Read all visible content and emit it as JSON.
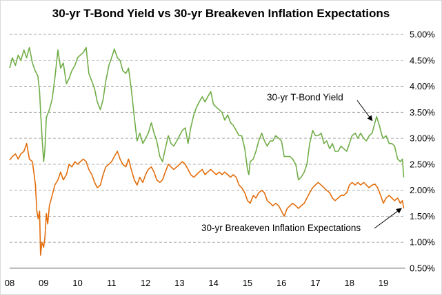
{
  "chart_data": {
    "type": "line",
    "title": "30-yr T-Bond Yield vs 30-yr Breakeven Inflation Expectations",
    "xlabel": "",
    "ylabel": "",
    "x_ticks": [
      "08",
      "09",
      "10",
      "11",
      "12",
      "13",
      "14",
      "15",
      "16",
      "17",
      "18",
      "19"
    ],
    "y_ticks": [
      "0.50%",
      "1.00%",
      "1.50%",
      "2.00%",
      "2.50%",
      "3.00%",
      "3.50%",
      "4.00%",
      "4.50%",
      "5.00%"
    ],
    "xlim": [
      2008.0,
      2019.65
    ],
    "ylim": [
      0.5,
      5.0
    ],
    "y_position": "right",
    "grid": "horizontal-dashed",
    "colors": {
      "yield": "#70ad47",
      "breakeven": "#e36c0a"
    },
    "series": [
      {
        "name": "30-yr T-Bond Yield",
        "key": "yield",
        "points": [
          [
            2008.0,
            4.35
          ],
          [
            2008.08,
            4.55
          ],
          [
            2008.17,
            4.4
          ],
          [
            2008.25,
            4.6
          ],
          [
            2008.33,
            4.5
          ],
          [
            2008.42,
            4.7
          ],
          [
            2008.5,
            4.55
          ],
          [
            2008.58,
            4.75
          ],
          [
            2008.67,
            4.45
          ],
          [
            2008.75,
            4.3
          ],
          [
            2008.83,
            4.2
          ],
          [
            2008.88,
            3.9
          ],
          [
            2008.92,
            3.4
          ],
          [
            2008.96,
            2.95
          ],
          [
            2009.0,
            2.55
          ],
          [
            2009.04,
            2.8
          ],
          [
            2009.08,
            3.4
          ],
          [
            2009.17,
            3.55
          ],
          [
            2009.25,
            3.75
          ],
          [
            2009.33,
            4.15
          ],
          [
            2009.42,
            4.7
          ],
          [
            2009.5,
            4.35
          ],
          [
            2009.58,
            4.45
          ],
          [
            2009.67,
            4.05
          ],
          [
            2009.75,
            4.15
          ],
          [
            2009.83,
            4.3
          ],
          [
            2009.92,
            4.4
          ],
          [
            2010.0,
            4.55
          ],
          [
            2010.08,
            4.6
          ],
          [
            2010.17,
            4.65
          ],
          [
            2010.25,
            4.75
          ],
          [
            2010.33,
            4.25
          ],
          [
            2010.42,
            4.1
          ],
          [
            2010.5,
            3.95
          ],
          [
            2010.58,
            3.7
          ],
          [
            2010.67,
            3.55
          ],
          [
            2010.75,
            3.75
          ],
          [
            2010.83,
            4.1
          ],
          [
            2010.92,
            4.4
          ],
          [
            2011.0,
            4.55
          ],
          [
            2011.08,
            4.72
          ],
          [
            2011.17,
            4.55
          ],
          [
            2011.25,
            4.5
          ],
          [
            2011.33,
            4.3
          ],
          [
            2011.42,
            4.25
          ],
          [
            2011.5,
            4.35
          ],
          [
            2011.58,
            3.95
          ],
          [
            2011.67,
            3.4
          ],
          [
            2011.75,
            2.95
          ],
          [
            2011.83,
            3.1
          ],
          [
            2011.92,
            2.9
          ],
          [
            2012.0,
            3.0
          ],
          [
            2012.08,
            3.1
          ],
          [
            2012.17,
            3.3
          ],
          [
            2012.25,
            3.1
          ],
          [
            2012.33,
            2.95
          ],
          [
            2012.42,
            2.65
          ],
          [
            2012.5,
            2.55
          ],
          [
            2012.58,
            2.8
          ],
          [
            2012.67,
            3.05
          ],
          [
            2012.75,
            2.9
          ],
          [
            2012.83,
            2.85
          ],
          [
            2012.92,
            2.95
          ],
          [
            2013.0,
            3.05
          ],
          [
            2013.08,
            3.15
          ],
          [
            2013.17,
            3.2
          ],
          [
            2013.25,
            2.9
          ],
          [
            2013.33,
            3.2
          ],
          [
            2013.42,
            3.45
          ],
          [
            2013.5,
            3.6
          ],
          [
            2013.58,
            3.7
          ],
          [
            2013.67,
            3.8
          ],
          [
            2013.75,
            3.7
          ],
          [
            2013.83,
            3.8
          ],
          [
            2013.92,
            3.9
          ],
          [
            2014.0,
            3.65
          ],
          [
            2014.08,
            3.6
          ],
          [
            2014.17,
            3.55
          ],
          [
            2014.25,
            3.5
          ],
          [
            2014.33,
            3.35
          ],
          [
            2014.42,
            3.45
          ],
          [
            2014.5,
            3.3
          ],
          [
            2014.58,
            3.25
          ],
          [
            2014.67,
            3.15
          ],
          [
            2014.75,
            3.05
          ],
          [
            2014.83,
            3.05
          ],
          [
            2014.92,
            2.8
          ],
          [
            2015.0,
            2.4
          ],
          [
            2015.04,
            2.3
          ],
          [
            2015.08,
            2.55
          ],
          [
            2015.17,
            2.6
          ],
          [
            2015.25,
            2.75
          ],
          [
            2015.33,
            2.95
          ],
          [
            2015.42,
            3.1
          ],
          [
            2015.5,
            2.95
          ],
          [
            2015.58,
            2.85
          ],
          [
            2015.67,
            2.95
          ],
          [
            2015.75,
            2.95
          ],
          [
            2015.83,
            3.05
          ],
          [
            2015.92,
            3.0
          ],
          [
            2016.0,
            2.95
          ],
          [
            2016.08,
            2.65
          ],
          [
            2016.17,
            2.65
          ],
          [
            2016.25,
            2.65
          ],
          [
            2016.33,
            2.6
          ],
          [
            2016.42,
            2.5
          ],
          [
            2016.5,
            2.2
          ],
          [
            2016.58,
            2.25
          ],
          [
            2016.67,
            2.35
          ],
          [
            2016.75,
            2.5
          ],
          [
            2016.83,
            2.9
          ],
          [
            2016.92,
            3.15
          ],
          [
            2017.0,
            3.05
          ],
          [
            2017.08,
            3.05
          ],
          [
            2017.17,
            3.1
          ],
          [
            2017.25,
            2.9
          ],
          [
            2017.33,
            2.95
          ],
          [
            2017.42,
            2.8
          ],
          [
            2017.5,
            2.9
          ],
          [
            2017.58,
            2.75
          ],
          [
            2017.67,
            2.75
          ],
          [
            2017.75,
            2.85
          ],
          [
            2017.83,
            2.8
          ],
          [
            2017.92,
            2.75
          ],
          [
            2018.0,
            2.9
          ],
          [
            2018.08,
            3.05
          ],
          [
            2018.17,
            3.1
          ],
          [
            2018.25,
            3.0
          ],
          [
            2018.33,
            3.1
          ],
          [
            2018.42,
            3.0
          ],
          [
            2018.5,
            2.95
          ],
          [
            2018.58,
            3.05
          ],
          [
            2018.67,
            3.1
          ],
          [
            2018.75,
            3.3
          ],
          [
            2018.8,
            3.42
          ],
          [
            2018.88,
            3.25
          ],
          [
            2018.96,
            3.05
          ],
          [
            2019.0,
            3.0
          ],
          [
            2019.08,
            3.05
          ],
          [
            2019.17,
            2.9
          ],
          [
            2019.25,
            2.9
          ],
          [
            2019.33,
            2.85
          ],
          [
            2019.42,
            2.6
          ],
          [
            2019.5,
            2.55
          ],
          [
            2019.56,
            2.6
          ],
          [
            2019.6,
            2.25
          ]
        ]
      },
      {
        "name": "30-yr Breakeven Inflation Expectations",
        "key": "breakeven",
        "points": [
          [
            2008.0,
            2.58
          ],
          [
            2008.08,
            2.65
          ],
          [
            2008.17,
            2.7
          ],
          [
            2008.25,
            2.6
          ],
          [
            2008.33,
            2.7
          ],
          [
            2008.42,
            2.75
          ],
          [
            2008.5,
            2.9
          ],
          [
            2008.58,
            2.6
          ],
          [
            2008.67,
            2.55
          ],
          [
            2008.72,
            2.3
          ],
          [
            2008.76,
            2.1
          ],
          [
            2008.8,
            1.6
          ],
          [
            2008.84,
            1.45
          ],
          [
            2008.88,
            1.6
          ],
          [
            2008.91,
            0.75
          ],
          [
            2008.95,
            1.0
          ],
          [
            2009.0,
            0.9
          ],
          [
            2009.04,
            1.1
          ],
          [
            2009.08,
            1.55
          ],
          [
            2009.12,
            1.35
          ],
          [
            2009.17,
            1.7
          ],
          [
            2009.25,
            1.9
          ],
          [
            2009.33,
            2.1
          ],
          [
            2009.42,
            2.2
          ],
          [
            2009.5,
            2.35
          ],
          [
            2009.58,
            2.2
          ],
          [
            2009.67,
            2.3
          ],
          [
            2009.75,
            2.5
          ],
          [
            2009.83,
            2.45
          ],
          [
            2009.92,
            2.55
          ],
          [
            2010.0,
            2.5
          ],
          [
            2010.08,
            2.55
          ],
          [
            2010.17,
            2.6
          ],
          [
            2010.25,
            2.55
          ],
          [
            2010.33,
            2.4
          ],
          [
            2010.42,
            2.3
          ],
          [
            2010.5,
            2.15
          ],
          [
            2010.58,
            2.05
          ],
          [
            2010.67,
            2.1
          ],
          [
            2010.75,
            2.3
          ],
          [
            2010.83,
            2.45
          ],
          [
            2010.92,
            2.5
          ],
          [
            2011.0,
            2.55
          ],
          [
            2011.08,
            2.65
          ],
          [
            2011.17,
            2.75
          ],
          [
            2011.25,
            2.6
          ],
          [
            2011.33,
            2.5
          ],
          [
            2011.42,
            2.45
          ],
          [
            2011.5,
            2.6
          ],
          [
            2011.58,
            2.4
          ],
          [
            2011.67,
            2.2
          ],
          [
            2011.75,
            2.1
          ],
          [
            2011.83,
            2.25
          ],
          [
            2011.92,
            2.15
          ],
          [
            2012.0,
            2.3
          ],
          [
            2012.08,
            2.4
          ],
          [
            2012.17,
            2.45
          ],
          [
            2012.25,
            2.35
          ],
          [
            2012.33,
            2.2
          ],
          [
            2012.42,
            2.15
          ],
          [
            2012.5,
            2.2
          ],
          [
            2012.58,
            2.35
          ],
          [
            2012.67,
            2.5
          ],
          [
            2012.75,
            2.45
          ],
          [
            2012.83,
            2.4
          ],
          [
            2012.92,
            2.45
          ],
          [
            2013.0,
            2.5
          ],
          [
            2013.08,
            2.55
          ],
          [
            2013.17,
            2.5
          ],
          [
            2013.25,
            2.4
          ],
          [
            2013.33,
            2.3
          ],
          [
            2013.42,
            2.25
          ],
          [
            2013.5,
            2.3
          ],
          [
            2013.58,
            2.35
          ],
          [
            2013.67,
            2.4
          ],
          [
            2013.75,
            2.3
          ],
          [
            2013.83,
            2.35
          ],
          [
            2013.92,
            2.4
          ],
          [
            2014.0,
            2.35
          ],
          [
            2014.08,
            2.3
          ],
          [
            2014.17,
            2.35
          ],
          [
            2014.25,
            2.3
          ],
          [
            2014.33,
            2.35
          ],
          [
            2014.42,
            2.3
          ],
          [
            2014.5,
            2.25
          ],
          [
            2014.58,
            2.3
          ],
          [
            2014.67,
            2.25
          ],
          [
            2014.75,
            2.1
          ],
          [
            2014.83,
            2.05
          ],
          [
            2014.92,
            1.95
          ],
          [
            2015.0,
            1.8
          ],
          [
            2015.08,
            1.75
          ],
          [
            2015.17,
            1.9
          ],
          [
            2015.25,
            1.85
          ],
          [
            2015.33,
            1.95
          ],
          [
            2015.42,
            2.0
          ],
          [
            2015.5,
            1.95
          ],
          [
            2015.58,
            1.8
          ],
          [
            2015.67,
            1.75
          ],
          [
            2015.75,
            1.7
          ],
          [
            2015.83,
            1.75
          ],
          [
            2015.92,
            1.7
          ],
          [
            2016.0,
            1.6
          ],
          [
            2016.08,
            1.5
          ],
          [
            2016.17,
            1.65
          ],
          [
            2016.25,
            1.7
          ],
          [
            2016.33,
            1.75
          ],
          [
            2016.42,
            1.7
          ],
          [
            2016.5,
            1.65
          ],
          [
            2016.58,
            1.7
          ],
          [
            2016.67,
            1.75
          ],
          [
            2016.75,
            1.85
          ],
          [
            2016.83,
            1.95
          ],
          [
            2016.92,
            2.05
          ],
          [
            2017.0,
            2.1
          ],
          [
            2017.08,
            2.15
          ],
          [
            2017.17,
            2.1
          ],
          [
            2017.25,
            2.05
          ],
          [
            2017.33,
            2.0
          ],
          [
            2017.42,
            1.95
          ],
          [
            2017.5,
            1.85
          ],
          [
            2017.58,
            1.8
          ],
          [
            2017.67,
            1.85
          ],
          [
            2017.75,
            1.9
          ],
          [
            2017.83,
            1.9
          ],
          [
            2017.92,
            1.95
          ],
          [
            2018.0,
            2.1
          ],
          [
            2018.08,
            2.15
          ],
          [
            2018.17,
            2.1
          ],
          [
            2018.25,
            2.15
          ],
          [
            2018.33,
            2.1
          ],
          [
            2018.42,
            2.15
          ],
          [
            2018.5,
            2.1
          ],
          [
            2018.58,
            2.05
          ],
          [
            2018.67,
            2.1
          ],
          [
            2018.75,
            2.12
          ],
          [
            2018.83,
            2.05
          ],
          [
            2018.92,
            1.9
          ],
          [
            2019.0,
            1.75
          ],
          [
            2019.08,
            1.85
          ],
          [
            2019.17,
            1.9
          ],
          [
            2019.25,
            1.85
          ],
          [
            2019.33,
            1.8
          ],
          [
            2019.42,
            1.85
          ],
          [
            2019.5,
            1.75
          ],
          [
            2019.56,
            1.8
          ],
          [
            2019.6,
            1.65
          ]
        ]
      }
    ],
    "annotations": [
      {
        "text": "30-yr T-Bond Yield",
        "series": "yield",
        "arrow_to": [
          2018.67,
          3.3
        ]
      },
      {
        "text": "30-yr Breakeven Inflation Expectations",
        "series": "breakeven",
        "arrow_to": [
          2019.57,
          1.69
        ]
      }
    ]
  }
}
